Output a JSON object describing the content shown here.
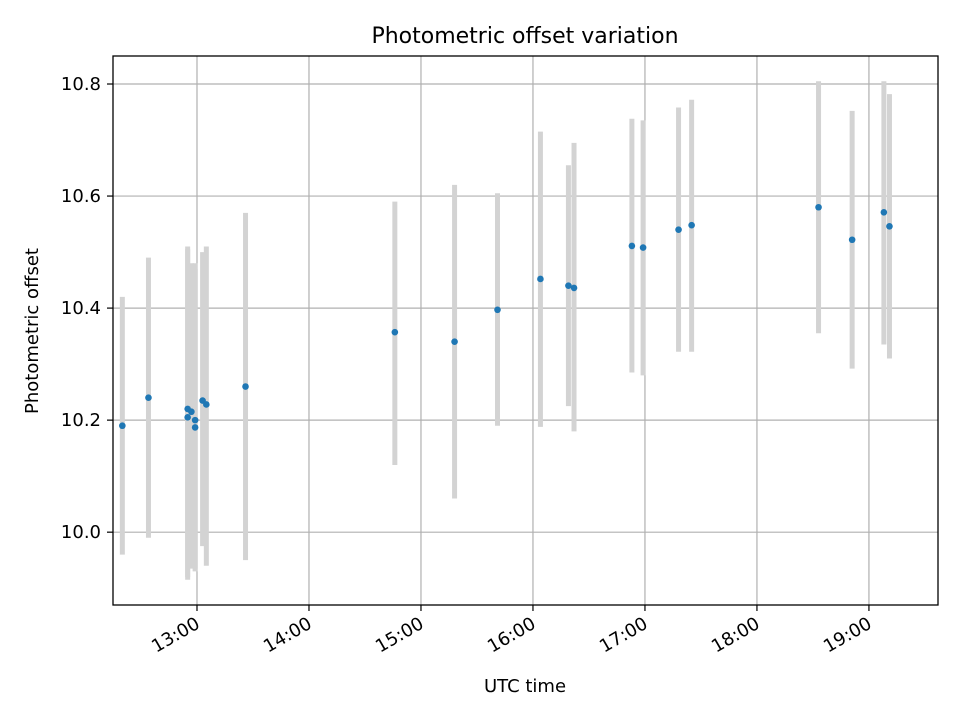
{
  "chart_data": {
    "type": "scatter",
    "title": "Photometric offset variation",
    "xlabel": "UTC time",
    "ylabel": "Photometric offset",
    "xlim": [
      "12:15",
      "19:37"
    ],
    "ylim": [
      9.87,
      10.85
    ],
    "x_ticks": [
      "13:00",
      "14:00",
      "15:00",
      "16:00",
      "17:00",
      "18:00",
      "19:00"
    ],
    "y_ticks": [
      "10.0",
      "10.2",
      "10.4",
      "10.6",
      "10.8"
    ],
    "grid": true,
    "marker_color": "#1f77b4",
    "errorbar_color": "#d3d3d3",
    "points": [
      {
        "x": "12:20",
        "y": 10.19,
        "lo": 9.96,
        "hi": 10.42
      },
      {
        "x": "12:34",
        "y": 10.24,
        "lo": 9.99,
        "hi": 10.49
      },
      {
        "x": "12:55",
        "y": 10.22,
        "lo": 9.92,
        "hi": 10.51
      },
      {
        "x": "12:55",
        "y": 10.205,
        "lo": 9.915,
        "hi": 10.505
      },
      {
        "x": "12:57",
        "y": 10.215,
        "lo": 9.935,
        "hi": 10.48
      },
      {
        "x": "12:59",
        "y": 10.2,
        "lo": 9.93,
        "hi": 10.48
      },
      {
        "x": "12:59",
        "y": 10.187,
        "lo": 9.935,
        "hi": 10.47
      },
      {
        "x": "13:03",
        "y": 10.235,
        "lo": 9.975,
        "hi": 10.5
      },
      {
        "x": "13:05",
        "y": 10.228,
        "lo": 9.94,
        "hi": 10.51
      },
      {
        "x": "13:26",
        "y": 10.26,
        "lo": 9.95,
        "hi": 10.57
      },
      {
        "x": "14:46",
        "y": 10.357,
        "lo": 10.12,
        "hi": 10.59
      },
      {
        "x": "15:18",
        "y": 10.34,
        "lo": 10.06,
        "hi": 10.62
      },
      {
        "x": "15:41",
        "y": 10.397,
        "lo": 10.19,
        "hi": 10.605
      },
      {
        "x": "16:04",
        "y": 10.452,
        "lo": 10.188,
        "hi": 10.715
      },
      {
        "x": "16:19",
        "y": 10.44,
        "lo": 10.225,
        "hi": 10.655
      },
      {
        "x": "16:22",
        "y": 10.436,
        "lo": 10.18,
        "hi": 10.695
      },
      {
        "x": "16:53",
        "y": 10.511,
        "lo": 10.285,
        "hi": 10.738
      },
      {
        "x": "16:59",
        "y": 10.508,
        "lo": 10.28,
        "hi": 10.735
      },
      {
        "x": "17:18",
        "y": 10.54,
        "lo": 10.322,
        "hi": 10.758
      },
      {
        "x": "17:25",
        "y": 10.548,
        "lo": 10.322,
        "hi": 10.772
      },
      {
        "x": "18:33",
        "y": 10.58,
        "lo": 10.355,
        "hi": 10.805
      },
      {
        "x": "18:51",
        "y": 10.522,
        "lo": 10.292,
        "hi": 10.752
      },
      {
        "x": "19:08",
        "y": 10.571,
        "lo": 10.335,
        "hi": 10.805
      },
      {
        "x": "19:11",
        "y": 10.546,
        "lo": 10.31,
        "hi": 10.782
      }
    ]
  }
}
